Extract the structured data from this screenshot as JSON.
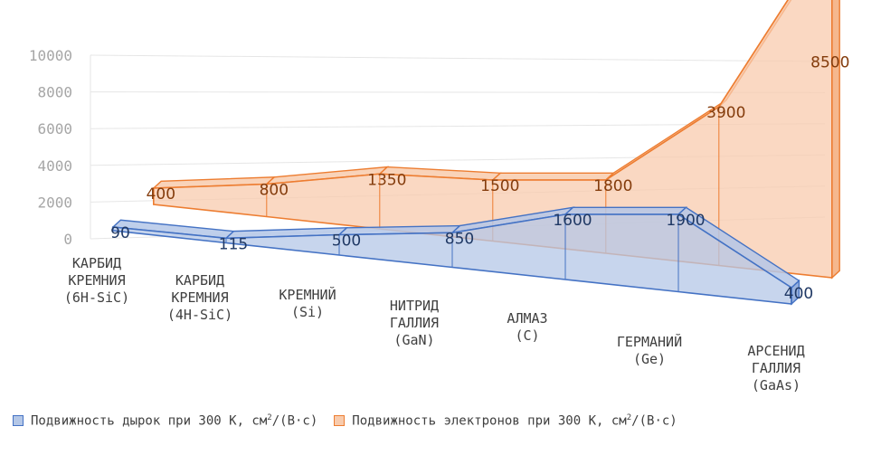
{
  "chart_data": {
    "type": "area",
    "three_d": true,
    "categories": [
      "КАРБИД КРЕМНИЯ (6H-SiC)",
      "КАРБИД КРЕМНИЯ (4H-SiC)",
      "КРЕМНИЙ (Si)",
      "НИТРИД ГАЛЛИЯ (GaN)",
      "АЛМАЗ (C)",
      "ГЕРМАНИЙ (Ge)",
      "АРСЕНИД ГАЛЛИЯ (GaAs)"
    ],
    "category_lines": [
      [
        "КАРБИД",
        "КРЕМНИЯ",
        "(6H-SiC)"
      ],
      [
        "КАРБИД",
        "КРЕМНИЯ",
        "(4H-SiC)"
      ],
      [
        "КРЕМНИЙ",
        "(Si)"
      ],
      [
        "НИТРИД",
        "ГАЛЛИЯ",
        "(GaN)"
      ],
      [
        "АЛМАЗ",
        "(C)"
      ],
      [
        "ГЕРМАНИЙ",
        "(Ge)"
      ],
      [
        "АРСЕНИД",
        "ГАЛЛИЯ",
        "(GaAs)"
      ]
    ],
    "series": [
      {
        "name": "Подвижность дырок при 300 К, см²/(В·с)",
        "legend_prefix": "Подвижность дырок при 300 К, см",
        "legend_suffix": "/(В·с)",
        "values": [
          90,
          115,
          500,
          850,
          1600,
          1900,
          400
        ],
        "labels": [
          "90",
          "115",
          "500",
          "850",
          "1600",
          "1900",
          "400"
        ],
        "color": "#4472c4",
        "fill": "#b4c7e7"
      },
      {
        "name": "Подвижность электронов при 300 К, см²/(В·с)",
        "legend_prefix": "Подвижность электронов при 300 К, см",
        "legend_suffix": "/(В·с)",
        "values": [
          400,
          800,
          1350,
          1500,
          1800,
          3900,
          8500
        ],
        "labels": [
          "400",
          "800",
          "1350",
          "1500",
          "1800",
          "3900",
          "8500"
        ],
        "color": "#ed7d31",
        "fill": "#f8cbad"
      }
    ],
    "y_ticks": [
      "0",
      "2000",
      "4000",
      "6000",
      "8000",
      "10000"
    ],
    "ylim": [
      0,
      10000
    ],
    "grid": true,
    "legend_position": "bottom"
  }
}
